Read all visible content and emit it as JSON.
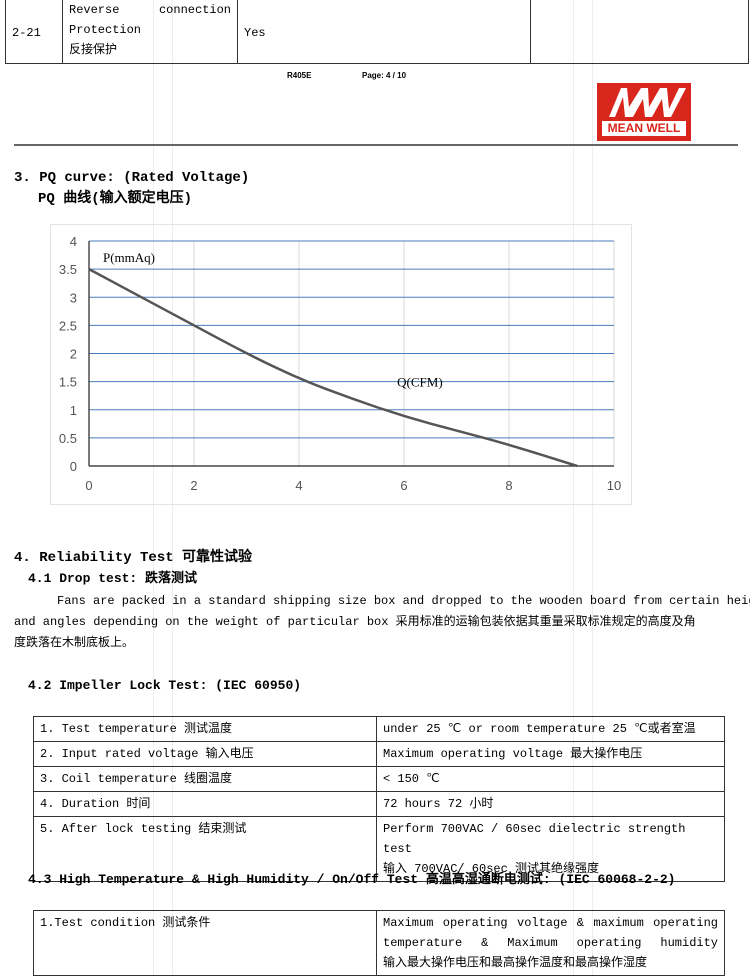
{
  "top_table": {
    "row_id": "2-21",
    "item_lines": [
      "Reverse",
      "connection",
      "Protection",
      "反接保护"
    ],
    "value": "Yes"
  },
  "footer": {
    "doc_code": "R405E",
    "page": "Page: 4 / 10"
  },
  "logo": {
    "text": "MEAN WELL",
    "mark": "MW",
    "color": "#d9261c"
  },
  "section3": {
    "title": "3. PQ curve: (Rated Voltage)",
    "subtitle": "PQ 曲线(输入额定电压)"
  },
  "chart_data": {
    "type": "line",
    "title": "",
    "xlabel": "Q(CFM)",
    "ylabel": "P(mmAq)",
    "xlim": [
      0,
      10
    ],
    "ylim": [
      0,
      4
    ],
    "x_ticks": [
      "0",
      "2",
      "4",
      "6",
      "8",
      "10"
    ],
    "y_ticks": [
      "0",
      "0.5",
      "1",
      "1.5",
      "2",
      "2.5",
      "3",
      "3.5",
      "4"
    ],
    "grid": "horizontal and vertical",
    "series": [
      {
        "x": [
          0,
          1,
          2,
          3,
          4,
          5,
          6,
          7,
          8,
          9.3
        ],
        "y": [
          3.5,
          3.0,
          2.5,
          2.0,
          1.55,
          1.2,
          0.88,
          0.63,
          0.38,
          0.0
        ],
        "color": "#555555"
      }
    ],
    "grid_color": "#4a7ebb"
  },
  "section4": {
    "title": "4. Reliability Test 可靠性试验",
    "s41_title": "4.1 Drop test: 跌落测试",
    "s41_lines": [
      "Fans are packed in a standard shipping size box and dropped to the wooden board from certain heights",
      "and angles depending on the weight of particular box 采用标准的运输包装依据其重量采取标准规定的高度及角",
      "度跌落在木制底板上。"
    ],
    "s42_title": "4.2 Impeller Lock Test: (IEC 60950)",
    "s42_rows": [
      {
        "label": "1.  Test temperature 测试温度",
        "value": [
          "under 25 ℃ or room temperature 25 ℃或者室温"
        ]
      },
      {
        "label": "2.  Input rated voltage 输入电压",
        "value": [
          "Maximum operating voltage 最大操作电压"
        ]
      },
      {
        "label": "3.  Coil temperature 线圈温度",
        "value": [
          "< 150 ℃"
        ]
      },
      {
        "label": "4.  Duration 时间",
        "value": [
          "72 hours 72 小时"
        ]
      },
      {
        "label": "5.  After lock testing 结束测试",
        "value": [
          "Perform 700VAC / 60sec dielectric strength test",
          "输入 700VAC/ 60sec 测试其绝缘强度"
        ]
      }
    ],
    "s43_title": "4.3 High Temperature  & High Humidity / On/Off Test 高温高湿通断电测试: (IEC 60068-2-2)",
    "s43_rows": [
      {
        "label": "1.Test condition 测试条件",
        "value": [
          "Maximum operating voltage & maximum operating",
          "temperature & Maximum operating humidity",
          "输入最大操作电压和最高操作温度和最高操作湿度"
        ]
      }
    ]
  }
}
